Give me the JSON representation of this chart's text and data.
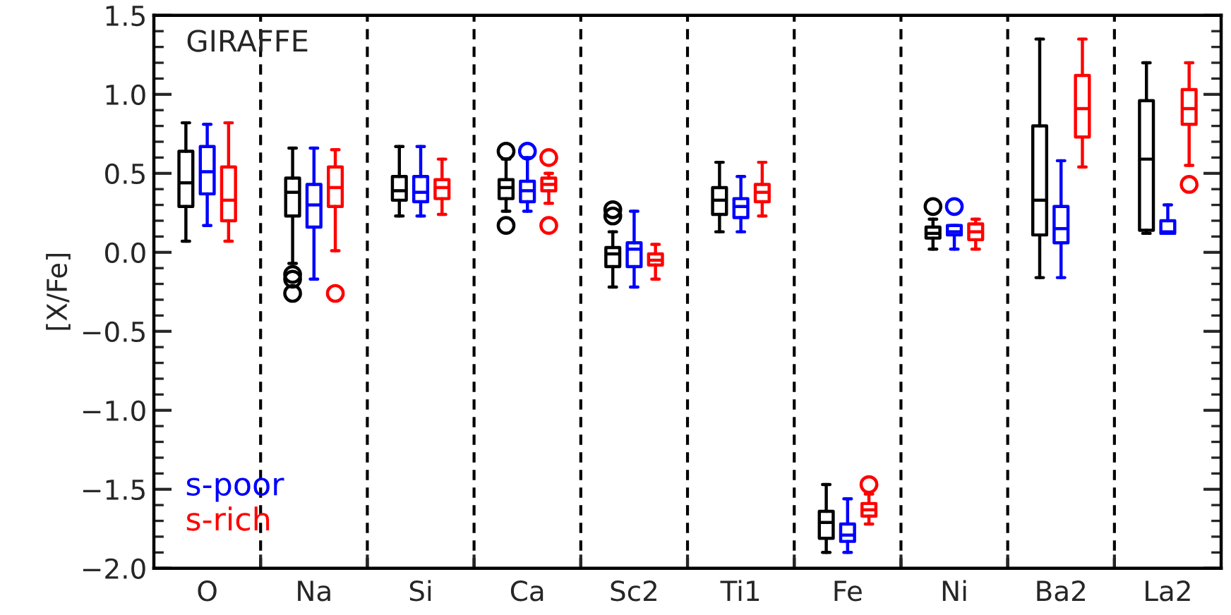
{
  "chart_data": {
    "type": "box",
    "ylabel": "[X/Fe]",
    "annotations": [
      "GIRAFFE"
    ],
    "categories": [
      "O",
      "Na",
      "Si",
      "Ca",
      "Sc2",
      "Ti1",
      "Fe",
      "Ni",
      "Ba2",
      "La2"
    ],
    "series": [
      {
        "color": "#000000",
        "boxes": [
          {
            "low": 0.07,
            "q1": 0.29,
            "median": 0.44,
            "q3": 0.64,
            "high": 0.82
          },
          {
            "low": -0.07,
            "q1": 0.23,
            "median": 0.38,
            "q3": 0.47,
            "high": 0.66,
            "outliers": [
              -0.14,
              -0.17,
              -0.26
            ]
          },
          {
            "low": 0.23,
            "q1": 0.33,
            "median": 0.39,
            "q3": 0.48,
            "high": 0.67
          },
          {
            "low": 0.26,
            "q1": 0.34,
            "median": 0.41,
            "q3": 0.46,
            "high": 0.59,
            "outliers": [
              0.64,
              0.17
            ]
          },
          {
            "low": -0.22,
            "q1": -0.09,
            "median": -0.01,
            "q3": 0.03,
            "high": 0.13,
            "outliers": [
              0.27,
              0.23
            ]
          },
          {
            "low": 0.13,
            "q1": 0.24,
            "median": 0.33,
            "q3": 0.41,
            "high": 0.57
          },
          {
            "low": -1.9,
            "q1": -1.81,
            "median": -1.71,
            "q3": -1.64,
            "high": -1.47
          },
          {
            "low": 0.02,
            "q1": 0.09,
            "median": 0.12,
            "q3": 0.16,
            "high": 0.21,
            "outliers": [
              0.29
            ]
          },
          {
            "low": -0.16,
            "q1": 0.11,
            "median": 0.33,
            "q3": 0.8,
            "high": 1.35
          },
          {
            "low": 0.12,
            "q1": 0.14,
            "median": 0.59,
            "q3": 0.96,
            "high": 1.2
          }
        ]
      },
      {
        "name": "s-poor",
        "color": "#0000ff",
        "boxes": [
          {
            "low": 0.17,
            "q1": 0.37,
            "median": 0.51,
            "q3": 0.67,
            "high": 0.81
          },
          {
            "low": -0.17,
            "q1": 0.16,
            "median": 0.3,
            "q3": 0.43,
            "high": 0.66
          },
          {
            "low": 0.23,
            "q1": 0.32,
            "median": 0.38,
            "q3": 0.48,
            "high": 0.67
          },
          {
            "low": 0.26,
            "q1": 0.32,
            "median": 0.39,
            "q3": 0.45,
            "high": 0.6,
            "outliers": [
              0.64
            ]
          },
          {
            "low": -0.22,
            "q1": -0.09,
            "median": 0.02,
            "q3": 0.06,
            "high": 0.26
          },
          {
            "low": 0.13,
            "q1": 0.22,
            "median": 0.29,
            "q3": 0.34,
            "high": 0.48
          },
          {
            "low": -1.9,
            "q1": -1.83,
            "median": -1.79,
            "q3": -1.72,
            "high": -1.56
          },
          {
            "low": 0.02,
            "q1": 0.11,
            "median": 0.13,
            "q3": 0.17,
            "high": 0.17,
            "outliers": [
              0.29
            ]
          },
          {
            "low": -0.16,
            "q1": 0.06,
            "median": 0.15,
            "q3": 0.29,
            "high": 0.58
          },
          {
            "low": 0.12,
            "q1": 0.12,
            "median": 0.13,
            "q3": 0.2,
            "high": 0.3
          }
        ]
      },
      {
        "name": "s-rich",
        "color": "#ff0000",
        "boxes": [
          {
            "low": 0.07,
            "q1": 0.2,
            "median": 0.33,
            "q3": 0.54,
            "high": 0.82
          },
          {
            "low": 0.01,
            "q1": 0.29,
            "median": 0.41,
            "q3": 0.54,
            "high": 0.65,
            "outliers": [
              -0.26
            ]
          },
          {
            "low": 0.24,
            "q1": 0.34,
            "median": 0.41,
            "q3": 0.46,
            "high": 0.59
          },
          {
            "low": 0.31,
            "q1": 0.39,
            "median": 0.43,
            "q3": 0.47,
            "high": 0.5,
            "outliers": [
              0.6,
              0.17
            ]
          },
          {
            "low": -0.17,
            "q1": -0.08,
            "median": -0.05,
            "q3": -0.01,
            "high": 0.05
          },
          {
            "low": 0.23,
            "q1": 0.32,
            "median": 0.38,
            "q3": 0.43,
            "high": 0.57
          },
          {
            "low": -1.72,
            "q1": -1.67,
            "median": -1.63,
            "q3": -1.59,
            "high": -1.53,
            "outliers": [
              -1.47
            ]
          },
          {
            "low": 0.02,
            "q1": 0.08,
            "median": 0.13,
            "q3": 0.18,
            "high": 0.21
          },
          {
            "low": 0.54,
            "q1": 0.73,
            "median": 0.91,
            "q3": 1.12,
            "high": 1.35
          },
          {
            "low": 0.55,
            "q1": 0.81,
            "median": 0.91,
            "q3": 1.03,
            "high": 1.2,
            "outliers": [
              0.43
            ]
          }
        ]
      }
    ],
    "ylim": [
      -2.0,
      1.5
    ],
    "yticks": [
      {
        "value": -2.0,
        "label": "−2.0"
      },
      {
        "value": -1.9,
        "label": null
      },
      {
        "value": -1.8,
        "label": null
      },
      {
        "value": -1.7,
        "label": null
      },
      {
        "value": -1.6,
        "label": null
      },
      {
        "value": -1.5,
        "label": "−1.5"
      },
      {
        "value": -1.4,
        "label": null
      },
      {
        "value": -1.3,
        "label": null
      },
      {
        "value": -1.2,
        "label": null
      },
      {
        "value": -1.1,
        "label": null
      },
      {
        "value": -1.0,
        "label": "−1.0"
      },
      {
        "value": -0.9,
        "label": null
      },
      {
        "value": -0.8,
        "label": null
      },
      {
        "value": -0.7,
        "label": null
      },
      {
        "value": -0.6,
        "label": null
      },
      {
        "value": -0.5,
        "label": "−0.5"
      },
      {
        "value": -0.4,
        "label": null
      },
      {
        "value": -0.3,
        "label": null
      },
      {
        "value": -0.2,
        "label": null
      },
      {
        "value": -0.1,
        "label": null
      },
      {
        "value": 0.0,
        "label": "0.0"
      },
      {
        "value": 0.1,
        "label": null
      },
      {
        "value": 0.2,
        "label": null
      },
      {
        "value": 0.3,
        "label": null
      },
      {
        "value": 0.4,
        "label": null
      },
      {
        "value": 0.5,
        "label": "0.5"
      },
      {
        "value": 0.6,
        "label": null
      },
      {
        "value": 0.7,
        "label": null
      },
      {
        "value": 0.8,
        "label": null
      },
      {
        "value": 0.9,
        "label": null
      },
      {
        "value": 1.0,
        "label": "1.0"
      },
      {
        "value": 1.1,
        "label": null
      },
      {
        "value": 1.2,
        "label": null
      },
      {
        "value": 1.3,
        "label": null
      },
      {
        "value": 1.4,
        "label": null
      },
      {
        "value": 1.5,
        "label": "1.5"
      }
    ],
    "grid": "x",
    "legend": "bottom left"
  }
}
